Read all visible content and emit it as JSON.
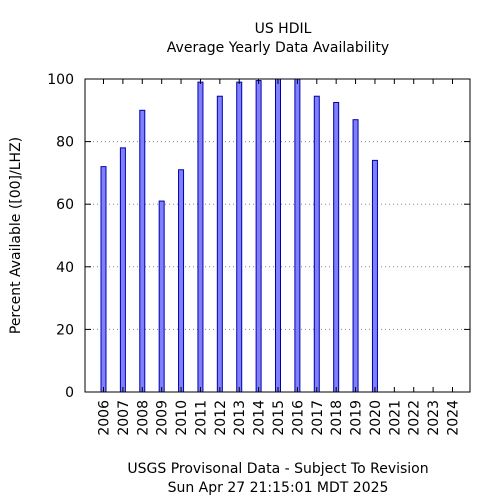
{
  "chart_data": {
    "type": "bar",
    "title": "US HDIL",
    "subtitle": "Average Yearly Data Availability",
    "ylabel": "Percent Available ([00]/LHZ)",
    "xlabel": "",
    "footer_line1": "USGS Provisonal Data - Subject To Revision",
    "footer_line2": "Sun Apr 27 21:15:01 MDT 2025",
    "categories": [
      "2006",
      "2007",
      "2008",
      "2009",
      "2010",
      "2011",
      "2012",
      "2013",
      "2014",
      "2015",
      "2016",
      "2017",
      "2018",
      "2019",
      "2020",
      "2021",
      "2022",
      "2023",
      "2024"
    ],
    "values": [
      72,
      78,
      90,
      61,
      71,
      99,
      94.5,
      99,
      99.5,
      100,
      100,
      94.5,
      92.5,
      87,
      74,
      null,
      null,
      null,
      null
    ],
    "ylim": [
      0,
      100
    ],
    "yticks": [
      0,
      20,
      40,
      60,
      80,
      100
    ],
    "grid": "horizontal dotted",
    "bar_color": "#8080ff",
    "bar_edge_color": "#0000aa"
  }
}
